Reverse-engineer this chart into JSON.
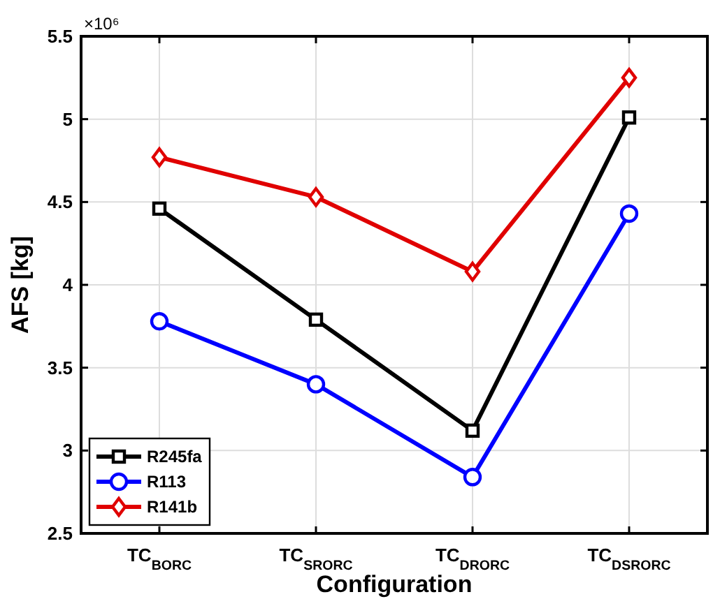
{
  "chart_data": {
    "type": "line",
    "xlabel": "Configuration",
    "ylabel": "AFS [kg]",
    "categories": [
      "TC$_{BORC}$",
      "TC$_{SRORC}$",
      "TC$_{DRORC}$",
      "TC$_{DSRORC}$"
    ],
    "series": [
      {
        "name": "R245fa",
        "color": "#000000",
        "marker": "square",
        "values": [
          4.46,
          3.79,
          3.12,
          5.01
        ]
      },
      {
        "name": "R113",
        "color": "#0000ff",
        "marker": "circle",
        "values": [
          3.78,
          3.4,
          2.84,
          4.43
        ]
      },
      {
        "name": "R141b",
        "color": "#e00000",
        "marker": "diamond",
        "values": [
          4.77,
          4.53,
          4.08,
          5.25
        ]
      }
    ],
    "ylim": [
      2.5,
      5.5
    ],
    "yticks": [
      2.5,
      3,
      3.5,
      4,
      4.5,
      5,
      5.5
    ],
    "annotations": [
      "×10⁶"
    ],
    "grid": true,
    "legend": "bottom left",
    "line_style": "solid"
  }
}
